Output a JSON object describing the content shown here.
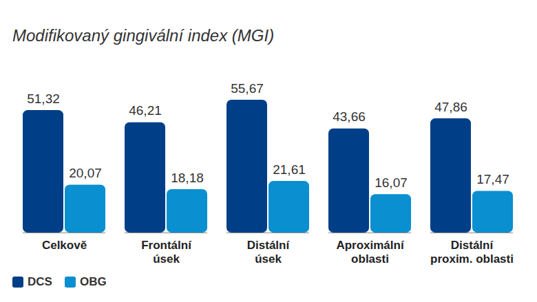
{
  "chart_data": {
    "type": "bar",
    "title": "Modifikovaný gingivální index (MGI)",
    "categories": [
      "Celkově",
      "Frontální úsek",
      "Distální úsek",
      "Aproximální oblasti",
      "Distální proxim. oblasti"
    ],
    "series": [
      {
        "name": "DCS",
        "color": "#003f87",
        "values": [
          51.32,
          46.21,
          55.67,
          43.66,
          47.86
        ],
        "value_labels": [
          "51,32",
          "46,21",
          "55,67",
          "43,66",
          "47,86"
        ]
      },
      {
        "name": "OBG",
        "color": "#0a8fd0",
        "values": [
          20.07,
          18.18,
          21.61,
          16.07,
          17.47
        ],
        "value_labels": [
          "20,07",
          "18,18",
          "21,61",
          "16,07",
          "17,47"
        ]
      }
    ],
    "data_labels": true,
    "tick_labels": "x",
    "legend": "bottom-left"
  }
}
